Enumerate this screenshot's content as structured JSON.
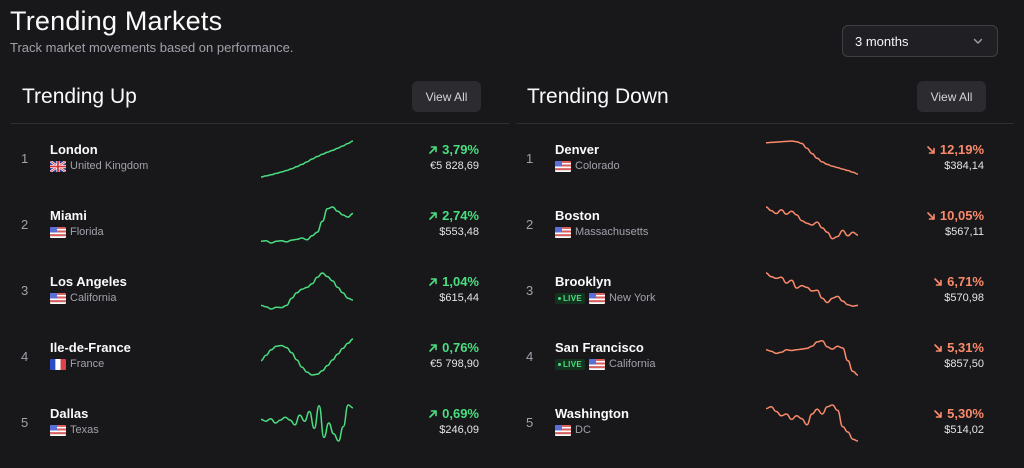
{
  "header": {
    "title": "Trending Markets",
    "subtitle": "Track market movements based on performance.",
    "range_value": "3 months"
  },
  "colors": {
    "up": "#4ade80",
    "down": "#fb8a6b",
    "background": "#18181b"
  },
  "trending_up": {
    "title": "Trending Up",
    "view_all_label": "View All",
    "items": [
      {
        "rank": "1",
        "name": "London",
        "region": "United Kingdom",
        "flag": "uk",
        "live": false,
        "change": "3,79%",
        "price": "€5 828,69",
        "trend": [
          0.0,
          0.03,
          0.06,
          0.1,
          0.14,
          0.18,
          0.23,
          0.29,
          0.35,
          0.42,
          0.5,
          0.57,
          0.63,
          0.69,
          0.74,
          0.8,
          0.86,
          0.93,
          1.0
        ]
      },
      {
        "rank": "2",
        "name": "Miami",
        "region": "Florida",
        "flag": "us",
        "live": false,
        "change": "2,74%",
        "price": "$553,48",
        "trend": [
          0.05,
          0.06,
          0.0,
          0.05,
          0.06,
          0.03,
          0.08,
          0.1,
          0.14,
          0.09,
          0.2,
          0.3,
          0.6,
          0.95,
          1.0,
          0.88,
          0.78,
          0.72,
          0.82
        ]
      },
      {
        "rank": "3",
        "name": "Los Angeles",
        "region": "California",
        "flag": "us",
        "live": false,
        "change": "1,04%",
        "price": "$615,44",
        "trend": [
          0.1,
          0.06,
          0.0,
          0.05,
          0.04,
          0.1,
          0.3,
          0.45,
          0.55,
          0.6,
          0.7,
          0.88,
          1.0,
          0.9,
          0.78,
          0.6,
          0.45,
          0.3,
          0.25
        ]
      },
      {
        "rank": "4",
        "name": "Ile-de-France",
        "region": "France",
        "flag": "fr",
        "live": false,
        "change": "0,76%",
        "price": "€5 798,90",
        "trend": [
          0.4,
          0.55,
          0.7,
          0.8,
          0.82,
          0.76,
          0.62,
          0.42,
          0.22,
          0.08,
          0.0,
          0.02,
          0.12,
          0.26,
          0.42,
          0.58,
          0.74,
          0.88,
          1.0
        ]
      },
      {
        "rank": "5",
        "name": "Dallas",
        "region": "Texas",
        "flag": "us",
        "live": false,
        "change": "0,69%",
        "price": "$246,09",
        "trend": [
          0.6,
          0.55,
          0.62,
          0.5,
          0.58,
          0.66,
          0.58,
          0.45,
          0.72,
          0.55,
          0.82,
          0.35,
          0.98,
          0.1,
          0.5,
          0.2,
          0.0,
          0.4,
          1.0,
          0.92
        ]
      }
    ]
  },
  "trending_down": {
    "title": "Trending Down",
    "view_all_label": "View All",
    "items": [
      {
        "rank": "1",
        "name": "Denver",
        "region": "Colorado",
        "flag": "us",
        "live": false,
        "change": "12,19%",
        "price": "$384,14",
        "trend": [
          0.95,
          0.96,
          0.97,
          0.98,
          0.99,
          1.0,
          0.98,
          0.93,
          0.8,
          0.65,
          0.52,
          0.42,
          0.35,
          0.3,
          0.26,
          0.22,
          0.18,
          0.13,
          0.08
        ]
      },
      {
        "rank": "2",
        "name": "Boston",
        "region": "Massachusetts",
        "flag": "us",
        "live": false,
        "change": "10,05%",
        "price": "$567,11",
        "trend": [
          1.0,
          0.9,
          0.82,
          0.92,
          0.8,
          0.88,
          0.78,
          0.62,
          0.55,
          0.5,
          0.58,
          0.42,
          0.3,
          0.12,
          0.18,
          0.35,
          0.2,
          0.3,
          0.22
        ]
      },
      {
        "rank": "3",
        "name": "Brooklyn",
        "region": "New York",
        "flag": "us",
        "live": true,
        "change": "6,71%",
        "price": "$570,98",
        "trend": [
          1.0,
          0.9,
          0.85,
          0.88,
          0.72,
          0.8,
          0.58,
          0.65,
          0.6,
          0.5,
          0.52,
          0.3,
          0.18,
          0.3,
          0.35,
          0.22,
          0.12,
          0.08,
          0.1
        ]
      },
      {
        "rank": "4",
        "name": "San Francisco",
        "region": "California",
        "flag": "us",
        "live": true,
        "change": "5,31%",
        "price": "$857,50",
        "trend": [
          0.7,
          0.66,
          0.6,
          0.63,
          0.7,
          0.68,
          0.7,
          0.72,
          0.74,
          0.8,
          0.92,
          0.95,
          0.78,
          0.72,
          0.8,
          0.75,
          0.4,
          0.1,
          0.0
        ]
      },
      {
        "rank": "5",
        "name": "Washington",
        "region": "DC",
        "flag": "us",
        "live": false,
        "change": "5,30%",
        "price": "$514,02",
        "trend": [
          0.9,
          0.95,
          0.82,
          0.7,
          0.75,
          0.6,
          0.7,
          0.62,
          0.45,
          0.75,
          0.88,
          0.75,
          0.95,
          1.0,
          0.85,
          0.4,
          0.25,
          0.05,
          0.0
        ]
      }
    ]
  }
}
